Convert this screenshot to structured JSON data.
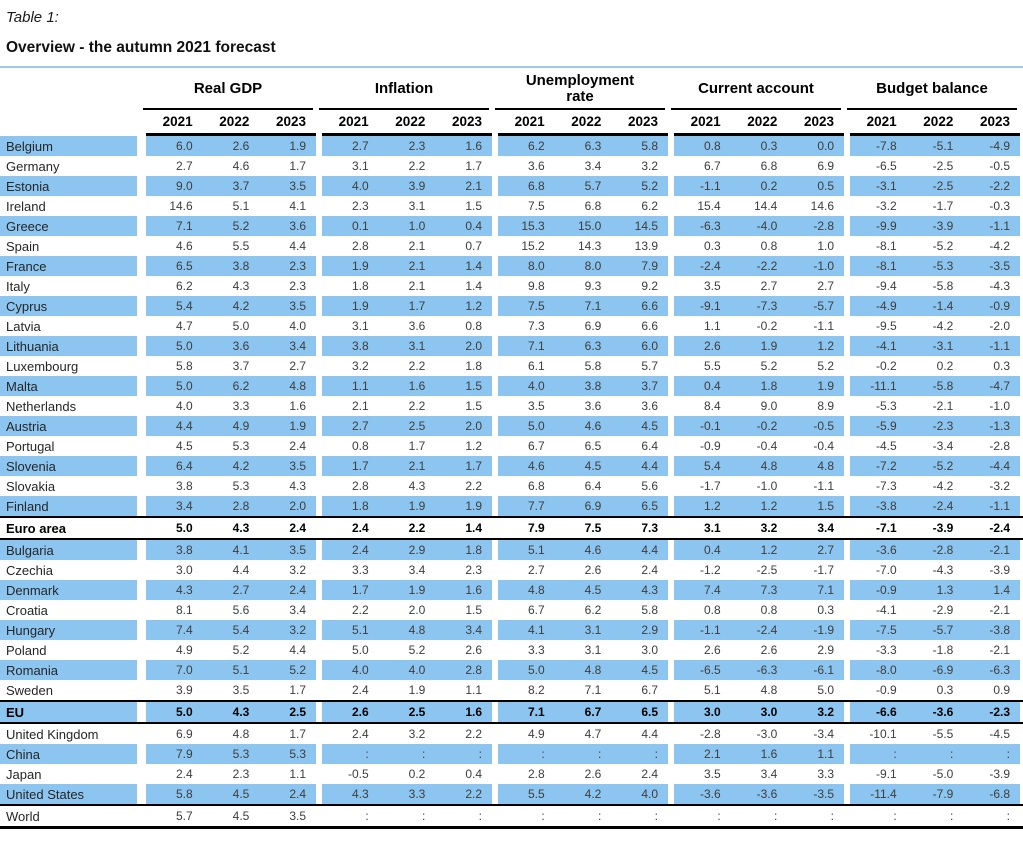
{
  "title": {
    "caption": "Table 1:",
    "heading": "Overview - the autumn 2021 forecast"
  },
  "colors": {
    "row_highlight": "#8cc5f0",
    "rule_blue": "#9cc9ee",
    "border_black": "#000000"
  },
  "table": {
    "groups": [
      "Real GDP",
      "Inflation",
      "Unemployment rate",
      "Current account",
      "Budget balance"
    ],
    "years": [
      "2021",
      "2022",
      "2023"
    ],
    "rows": [
      {
        "country": "Belgium",
        "highlight": true,
        "bold": false,
        "frame": "none",
        "values": [
          [
            "6.0",
            "2.6",
            "1.9"
          ],
          [
            "2.7",
            "2.3",
            "1.6"
          ],
          [
            "6.2",
            "6.3",
            "5.8"
          ],
          [
            "0.8",
            "0.3",
            "0.0"
          ],
          [
            "-7.8",
            "-5.1",
            "-4.9"
          ]
        ]
      },
      {
        "country": "Germany",
        "highlight": false,
        "bold": false,
        "frame": "none",
        "values": [
          [
            "2.7",
            "4.6",
            "1.7"
          ],
          [
            "3.1",
            "2.2",
            "1.7"
          ],
          [
            "3.6",
            "3.4",
            "3.2"
          ],
          [
            "6.7",
            "6.8",
            "6.9"
          ],
          [
            "-6.5",
            "-2.5",
            "-0.5"
          ]
        ]
      },
      {
        "country": "Estonia",
        "highlight": true,
        "bold": false,
        "frame": "none",
        "values": [
          [
            "9.0",
            "3.7",
            "3.5"
          ],
          [
            "4.0",
            "3.9",
            "2.1"
          ],
          [
            "6.8",
            "5.7",
            "5.2"
          ],
          [
            "-1.1",
            "0.2",
            "0.5"
          ],
          [
            "-3.1",
            "-2.5",
            "-2.2"
          ]
        ]
      },
      {
        "country": "Ireland",
        "highlight": false,
        "bold": false,
        "frame": "none",
        "values": [
          [
            "14.6",
            "5.1",
            "4.1"
          ],
          [
            "2.3",
            "3.1",
            "1.5"
          ],
          [
            "7.5",
            "6.8",
            "6.2"
          ],
          [
            "15.4",
            "14.4",
            "14.6"
          ],
          [
            "-3.2",
            "-1.7",
            "-0.3"
          ]
        ]
      },
      {
        "country": "Greece",
        "highlight": true,
        "bold": false,
        "frame": "none",
        "values": [
          [
            "7.1",
            "5.2",
            "3.6"
          ],
          [
            "0.1",
            "1.0",
            "0.4"
          ],
          [
            "15.3",
            "15.0",
            "14.5"
          ],
          [
            "-6.3",
            "-4.0",
            "-2.8"
          ],
          [
            "-9.9",
            "-3.9",
            "-1.1"
          ]
        ]
      },
      {
        "country": "Spain",
        "highlight": false,
        "bold": false,
        "frame": "none",
        "values": [
          [
            "4.6",
            "5.5",
            "4.4"
          ],
          [
            "2.8",
            "2.1",
            "0.7"
          ],
          [
            "15.2",
            "14.3",
            "13.9"
          ],
          [
            "0.3",
            "0.8",
            "1.0"
          ],
          [
            "-8.1",
            "-5.2",
            "-4.2"
          ]
        ]
      },
      {
        "country": "France",
        "highlight": true,
        "bold": false,
        "frame": "none",
        "values": [
          [
            "6.5",
            "3.8",
            "2.3"
          ],
          [
            "1.9",
            "2.1",
            "1.4"
          ],
          [
            "8.0",
            "8.0",
            "7.9"
          ],
          [
            "-2.4",
            "-2.2",
            "-1.0"
          ],
          [
            "-8.1",
            "-5.3",
            "-3.5"
          ]
        ]
      },
      {
        "country": "Italy",
        "highlight": false,
        "bold": false,
        "frame": "none",
        "values": [
          [
            "6.2",
            "4.3",
            "2.3"
          ],
          [
            "1.8",
            "2.1",
            "1.4"
          ],
          [
            "9.8",
            "9.3",
            "9.2"
          ],
          [
            "3.5",
            "2.7",
            "2.7"
          ],
          [
            "-9.4",
            "-5.8",
            "-4.3"
          ]
        ]
      },
      {
        "country": "Cyprus",
        "highlight": true,
        "bold": false,
        "frame": "none",
        "values": [
          [
            "5.4",
            "4.2",
            "3.5"
          ],
          [
            "1.9",
            "1.7",
            "1.2"
          ],
          [
            "7.5",
            "7.1",
            "6.6"
          ],
          [
            "-9.1",
            "-7.3",
            "-5.7"
          ],
          [
            "-4.9",
            "-1.4",
            "-0.9"
          ]
        ]
      },
      {
        "country": "Latvia",
        "highlight": false,
        "bold": false,
        "frame": "none",
        "values": [
          [
            "4.7",
            "5.0",
            "4.0"
          ],
          [
            "3.1",
            "3.6",
            "0.8"
          ],
          [
            "7.3",
            "6.9",
            "6.6"
          ],
          [
            "1.1",
            "-0.2",
            "-1.1"
          ],
          [
            "-9.5",
            "-4.2",
            "-2.0"
          ]
        ]
      },
      {
        "country": "Lithuania",
        "highlight": true,
        "bold": false,
        "frame": "none",
        "values": [
          [
            "5.0",
            "3.6",
            "3.4"
          ],
          [
            "3.8",
            "3.1",
            "2.0"
          ],
          [
            "7.1",
            "6.3",
            "6.0"
          ],
          [
            "2.6",
            "1.9",
            "1.2"
          ],
          [
            "-4.1",
            "-3.1",
            "-1.1"
          ]
        ]
      },
      {
        "country": "Luxembourg",
        "highlight": false,
        "bold": false,
        "frame": "none",
        "values": [
          [
            "5.8",
            "3.7",
            "2.7"
          ],
          [
            "3.2",
            "2.2",
            "1.8"
          ],
          [
            "6.1",
            "5.8",
            "5.7"
          ],
          [
            "5.5",
            "5.2",
            "5.2"
          ],
          [
            "-0.2",
            "0.2",
            "0.3"
          ]
        ]
      },
      {
        "country": "Malta",
        "highlight": true,
        "bold": false,
        "frame": "none",
        "values": [
          [
            "5.0",
            "6.2",
            "4.8"
          ],
          [
            "1.1",
            "1.6",
            "1.5"
          ],
          [
            "4.0",
            "3.8",
            "3.7"
          ],
          [
            "0.4",
            "1.8",
            "1.9"
          ],
          [
            "-11.1",
            "-5.8",
            "-4.7"
          ]
        ]
      },
      {
        "country": "Netherlands",
        "highlight": false,
        "bold": false,
        "frame": "none",
        "values": [
          [
            "4.0",
            "3.3",
            "1.6"
          ],
          [
            "2.1",
            "2.2",
            "1.5"
          ],
          [
            "3.5",
            "3.6",
            "3.6"
          ],
          [
            "8.4",
            "9.0",
            "8.9"
          ],
          [
            "-5.3",
            "-2.1",
            "-1.0"
          ]
        ]
      },
      {
        "country": "Austria",
        "highlight": true,
        "bold": false,
        "frame": "none",
        "values": [
          [
            "4.4",
            "4.9",
            "1.9"
          ],
          [
            "2.7",
            "2.5",
            "2.0"
          ],
          [
            "5.0",
            "4.6",
            "4.5"
          ],
          [
            "-0.1",
            "-0.2",
            "-0.5"
          ],
          [
            "-5.9",
            "-2.3",
            "-1.3"
          ]
        ]
      },
      {
        "country": "Portugal",
        "highlight": false,
        "bold": false,
        "frame": "none",
        "values": [
          [
            "4.5",
            "5.3",
            "2.4"
          ],
          [
            "0.8",
            "1.7",
            "1.2"
          ],
          [
            "6.7",
            "6.5",
            "6.4"
          ],
          [
            "-0.9",
            "-0.4",
            "-0.4"
          ],
          [
            "-4.5",
            "-3.4",
            "-2.8"
          ]
        ]
      },
      {
        "country": "Slovenia",
        "highlight": true,
        "bold": false,
        "frame": "none",
        "values": [
          [
            "6.4",
            "4.2",
            "3.5"
          ],
          [
            "1.7",
            "2.1",
            "1.7"
          ],
          [
            "4.6",
            "4.5",
            "4.4"
          ],
          [
            "5.4",
            "4.8",
            "4.8"
          ],
          [
            "-7.2",
            "-5.2",
            "-4.4"
          ]
        ]
      },
      {
        "country": "Slovakia",
        "highlight": false,
        "bold": false,
        "frame": "none",
        "values": [
          [
            "3.8",
            "5.3",
            "4.3"
          ],
          [
            "2.8",
            "4.3",
            "2.2"
          ],
          [
            "6.8",
            "6.4",
            "5.6"
          ],
          [
            "-1.7",
            "-1.0",
            "-1.1"
          ],
          [
            "-7.3",
            "-4.2",
            "-3.2"
          ]
        ]
      },
      {
        "country": "Finland",
        "highlight": true,
        "bold": false,
        "frame": "none",
        "values": [
          [
            "3.4",
            "2.8",
            "2.0"
          ],
          [
            "1.8",
            "1.9",
            "1.9"
          ],
          [
            "7.7",
            "6.9",
            "6.5"
          ],
          [
            "1.2",
            "1.2",
            "1.5"
          ],
          [
            "-3.8",
            "-2.4",
            "-1.1"
          ]
        ]
      },
      {
        "country": "Euro area",
        "highlight": false,
        "bold": true,
        "frame": "both",
        "values": [
          [
            "5.0",
            "4.3",
            "2.4"
          ],
          [
            "2.4",
            "2.2",
            "1.4"
          ],
          [
            "7.9",
            "7.5",
            "7.3"
          ],
          [
            "3.1",
            "3.2",
            "3.4"
          ],
          [
            "-7.1",
            "-3.9",
            "-2.4"
          ]
        ]
      },
      {
        "country": "Bulgaria",
        "highlight": true,
        "bold": false,
        "frame": "none",
        "values": [
          [
            "3.8",
            "4.1",
            "3.5"
          ],
          [
            "2.4",
            "2.9",
            "1.8"
          ],
          [
            "5.1",
            "4.6",
            "4.4"
          ],
          [
            "0.4",
            "1.2",
            "2.7"
          ],
          [
            "-3.6",
            "-2.8",
            "-2.1"
          ]
        ]
      },
      {
        "country": "Czechia",
        "highlight": false,
        "bold": false,
        "frame": "none",
        "values": [
          [
            "3.0",
            "4.4",
            "3.2"
          ],
          [
            "3.3",
            "3.4",
            "2.3"
          ],
          [
            "2.7",
            "2.6",
            "2.4"
          ],
          [
            "-1.2",
            "-2.5",
            "-1.7"
          ],
          [
            "-7.0",
            "-4.3",
            "-3.9"
          ]
        ]
      },
      {
        "country": "Denmark",
        "highlight": true,
        "bold": false,
        "frame": "none",
        "values": [
          [
            "4.3",
            "2.7",
            "2.4"
          ],
          [
            "1.7",
            "1.9",
            "1.6"
          ],
          [
            "4.8",
            "4.5",
            "4.3"
          ],
          [
            "7.4",
            "7.3",
            "7.1"
          ],
          [
            "-0.9",
            "1.3",
            "1.4"
          ]
        ]
      },
      {
        "country": "Croatia",
        "highlight": false,
        "bold": false,
        "frame": "none",
        "values": [
          [
            "8.1",
            "5.6",
            "3.4"
          ],
          [
            "2.2",
            "2.0",
            "1.5"
          ],
          [
            "6.7",
            "6.2",
            "5.8"
          ],
          [
            "0.8",
            "0.8",
            "0.3"
          ],
          [
            "-4.1",
            "-2.9",
            "-2.1"
          ]
        ]
      },
      {
        "country": "Hungary",
        "highlight": true,
        "bold": false,
        "frame": "none",
        "values": [
          [
            "7.4",
            "5.4",
            "3.2"
          ],
          [
            "5.1",
            "4.8",
            "3.4"
          ],
          [
            "4.1",
            "3.1",
            "2.9"
          ],
          [
            "-1.1",
            "-2.4",
            "-1.9"
          ],
          [
            "-7.5",
            "-5.7",
            "-3.8"
          ]
        ]
      },
      {
        "country": "Poland",
        "highlight": false,
        "bold": false,
        "frame": "none",
        "values": [
          [
            "4.9",
            "5.2",
            "4.4"
          ],
          [
            "5.0",
            "5.2",
            "2.6"
          ],
          [
            "3.3",
            "3.1",
            "3.0"
          ],
          [
            "2.6",
            "2.6",
            "2.9"
          ],
          [
            "-3.3",
            "-1.8",
            "-2.1"
          ]
        ]
      },
      {
        "country": "Romania",
        "highlight": true,
        "bold": false,
        "frame": "none",
        "values": [
          [
            "7.0",
            "5.1",
            "5.2"
          ],
          [
            "4.0",
            "4.0",
            "2.8"
          ],
          [
            "5.0",
            "4.8",
            "4.5"
          ],
          [
            "-6.5",
            "-6.3",
            "-6.1"
          ],
          [
            "-8.0",
            "-6.9",
            "-6.3"
          ]
        ]
      },
      {
        "country": "Sweden",
        "highlight": false,
        "bold": false,
        "frame": "none",
        "values": [
          [
            "3.9",
            "3.5",
            "1.7"
          ],
          [
            "2.4",
            "1.9",
            "1.1"
          ],
          [
            "8.2",
            "7.1",
            "6.7"
          ],
          [
            "5.1",
            "4.8",
            "5.0"
          ],
          [
            "-0.9",
            "0.3",
            "0.9"
          ]
        ]
      },
      {
        "country": "EU",
        "highlight": true,
        "bold": true,
        "frame": "both",
        "values": [
          [
            "5.0",
            "4.3",
            "2.5"
          ],
          [
            "2.6",
            "2.5",
            "1.6"
          ],
          [
            "7.1",
            "6.7",
            "6.5"
          ],
          [
            "3.0",
            "3.0",
            "3.2"
          ],
          [
            "-6.6",
            "-3.6",
            "-2.3"
          ]
        ]
      },
      {
        "country": "United Kingdom",
        "highlight": false,
        "bold": false,
        "frame": "none",
        "values": [
          [
            "6.9",
            "4.8",
            "1.7"
          ],
          [
            "2.4",
            "3.2",
            "2.2"
          ],
          [
            "4.9",
            "4.7",
            "4.4"
          ],
          [
            "-2.8",
            "-3.0",
            "-3.4"
          ],
          [
            "-10.1",
            "-5.5",
            "-4.5"
          ]
        ]
      },
      {
        "country": "China",
        "highlight": true,
        "bold": false,
        "frame": "none",
        "values": [
          [
            "7.9",
            "5.3",
            "5.3"
          ],
          [
            ":",
            ":",
            ":"
          ],
          [
            ":",
            ":",
            ":"
          ],
          [
            "2.1",
            "1.6",
            "1.1"
          ],
          [
            ":",
            ":",
            ":"
          ]
        ]
      },
      {
        "country": "Japan",
        "highlight": false,
        "bold": false,
        "frame": "none",
        "values": [
          [
            "2.4",
            "2.3",
            "1.1"
          ],
          [
            "-0.5",
            "0.2",
            "0.4"
          ],
          [
            "2.8",
            "2.6",
            "2.4"
          ],
          [
            "3.5",
            "3.4",
            "3.3"
          ],
          [
            "-9.1",
            "-5.0",
            "-3.9"
          ]
        ]
      },
      {
        "country": "United States",
        "highlight": true,
        "bold": false,
        "frame": "none",
        "values": [
          [
            "5.8",
            "4.5",
            "2.4"
          ],
          [
            "4.3",
            "3.3",
            "2.2"
          ],
          [
            "5.5",
            "4.2",
            "4.0"
          ],
          [
            "-3.6",
            "-3.6",
            "-3.5"
          ],
          [
            "-11.4",
            "-7.9",
            "-6.8"
          ]
        ]
      },
      {
        "country": "World",
        "highlight": false,
        "bold": false,
        "frame": "world",
        "values": [
          [
            "5.7",
            "4.5",
            "3.5"
          ],
          [
            ":",
            ":",
            ":"
          ],
          [
            ":",
            ":",
            ":"
          ],
          [
            ":",
            ":",
            ":"
          ],
          [
            ":",
            ":",
            ":"
          ]
        ]
      }
    ]
  }
}
